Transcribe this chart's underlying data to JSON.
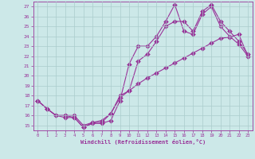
{
  "background_color": "#cce8e8",
  "grid_color": "#aacccc",
  "line_color": "#993399",
  "xlim": [
    -0.5,
    23.5
  ],
  "ylim": [
    14.5,
    27.5
  ],
  "xticks": [
    0,
    1,
    2,
    3,
    4,
    5,
    6,
    7,
    8,
    9,
    10,
    11,
    12,
    13,
    14,
    15,
    16,
    17,
    18,
    19,
    20,
    21,
    22,
    23
  ],
  "yticks": [
    15,
    16,
    17,
    18,
    19,
    20,
    21,
    22,
    23,
    24,
    25,
    26,
    27
  ],
  "xlabel": "Windchill (Refroidissement éolien,°C)",
  "line1_x": [
    0,
    1,
    2,
    3,
    4,
    5,
    6,
    7,
    8,
    9,
    10,
    11,
    12,
    13,
    14,
    15,
    16,
    17,
    18,
    19,
    20,
    21,
    22,
    23
  ],
  "line1_y": [
    17.5,
    16.7,
    16.0,
    15.8,
    15.8,
    14.8,
    15.2,
    15.2,
    15.5,
    17.5,
    21.2,
    23.0,
    23.0,
    24.0,
    25.5,
    27.2,
    24.5,
    24.2,
    26.2,
    27.0,
    25.0,
    24.0,
    23.2,
    22.0
  ],
  "line2_x": [
    0,
    1,
    2,
    3,
    4,
    5,
    6,
    7,
    8,
    9,
    10,
    11,
    12,
    13,
    14,
    15,
    16,
    17,
    18,
    19,
    20,
    21,
    22,
    23
  ],
  "line2_y": [
    17.5,
    16.7,
    16.0,
    16.0,
    15.8,
    14.8,
    15.3,
    15.3,
    16.2,
    18.0,
    18.5,
    21.5,
    22.2,
    23.5,
    25.0,
    25.5,
    25.5,
    24.5,
    26.5,
    27.2,
    25.5,
    24.5,
    23.5,
    22.2
  ],
  "line3_x": [
    0,
    1,
    2,
    3,
    4,
    5,
    6,
    7,
    8,
    9,
    10,
    11,
    12,
    13,
    14,
    15,
    16,
    17,
    18,
    19,
    20,
    21,
    22,
    23
  ],
  "line3_y": [
    17.5,
    16.7,
    16.0,
    16.0,
    16.0,
    15.0,
    15.3,
    15.5,
    16.2,
    17.8,
    18.5,
    19.2,
    19.8,
    20.3,
    20.8,
    21.3,
    21.8,
    22.3,
    22.8,
    23.3,
    23.8,
    23.9,
    24.2,
    22.0
  ]
}
